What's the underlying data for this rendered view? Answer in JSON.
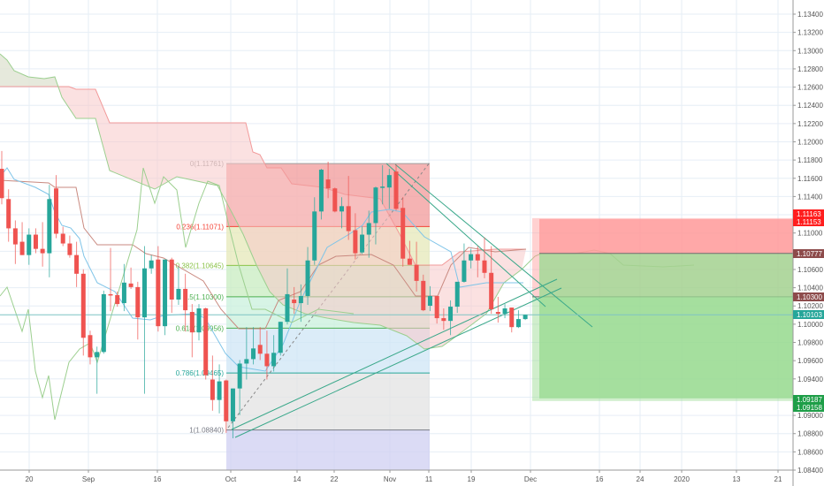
{
  "chart_data": {
    "type": "candlestick",
    "symbol_hidden": true,
    "ylim": [
      1.084,
      1.134
    ],
    "grid": true,
    "y_ticks": [
      "1.13400",
      "1.13200",
      "1.13000",
      "1.12800",
      "1.12600",
      "1.12400",
      "1.12200",
      "1.12000",
      "1.11800",
      "1.11600",
      "1.11400",
      "1.11000",
      "1.10600",
      "1.10400",
      "1.10200",
      "1.10000",
      "1.09800",
      "1.09600",
      "1.09400",
      "1.09000",
      "1.08800",
      "1.08600",
      "1.08400"
    ],
    "x_ticks": [
      "20",
      "Sep",
      "16",
      "Oct",
      "14",
      "22",
      "Nov",
      "11",
      "19",
      "Dec",
      "16",
      "24",
      "2020",
      "13",
      "21"
    ],
    "candles_ohlc": [
      [
        1.11704,
        1.11899,
        1.11314,
        1.11382
      ],
      [
        1.11372,
        1.11479,
        1.10904,
        1.11051
      ],
      [
        1.11051,
        1.11138,
        1.1066,
        1.10875
      ],
      [
        1.10904,
        1.11119,
        1.10758,
        1.10758
      ],
      [
        1.10758,
        1.11051,
        1.10651,
        1.10982
      ],
      [
        1.10982,
        1.11051,
        1.10778,
        1.10826
      ],
      [
        1.10826,
        1.11119,
        1.10631,
        1.10778
      ],
      [
        1.10778,
        1.11528,
        1.10514,
        1.11372
      ],
      [
        1.11489,
        1.11635,
        1.10943,
        1.10992
      ],
      [
        1.10992,
        1.1107,
        1.10856,
        1.10885
      ],
      [
        1.10885,
        1.10972,
        1.10729,
        1.10758
      ],
      [
        1.10758,
        1.10904,
        1.10407,
        1.10553
      ],
      [
        1.10553,
        1.10602,
        1.09656,
        1.09851
      ],
      [
        1.0988,
        1.09929,
        1.09559,
        1.09637
      ],
      [
        1.09637,
        1.09754,
        1.09237,
        1.09695
      ],
      [
        1.09695,
        1.10368,
        1.09676,
        1.10329
      ],
      [
        1.10329,
        1.10836,
        1.10143,
        1.10319
      ],
      [
        1.10319,
        1.10358,
        1.10192,
        1.10221
      ],
      [
        1.10231,
        1.1066,
        1.10143,
        1.10456
      ],
      [
        1.10446,
        1.10621,
        1.10387,
        1.10407
      ],
      [
        1.10407,
        1.10465,
        1.09832,
        1.10075
      ],
      [
        1.10075,
        1.10856,
        1.09237,
        1.10612
      ],
      [
        1.10612,
        1.10758,
        1.10553,
        1.10699
      ],
      [
        1.10709,
        1.10856,
        1.09919,
        1.09978
      ],
      [
        1.09978,
        1.10709,
        1.0988,
        1.10709
      ],
      [
        1.10709,
        1.10729,
        1.10124,
        1.1027
      ],
      [
        1.1027,
        1.10631,
        1.10212,
        1.10387
      ],
      [
        1.10387,
        1.10553,
        1.09919,
        1.10153
      ],
      [
        1.10134,
        1.10221,
        1.09637,
        1.0991
      ],
      [
        1.0991,
        1.10221,
        1.09822,
        1.10173
      ],
      [
        1.10173,
        1.10182,
        1.09393,
        1.09441
      ],
      [
        1.09393,
        1.09656,
        1.09051,
        1.09169
      ],
      [
        1.09169,
        1.09559,
        1.09022,
        1.09373
      ],
      [
        1.09383,
        1.09393,
        1.08808,
        1.08935
      ],
      [
        1.08935,
        1.09295,
        1.08749,
        1.09295
      ],
      [
        1.09295,
        1.09607,
        1.09003,
        1.09568
      ],
      [
        1.09568,
        1.09968,
        1.09393,
        1.09617
      ],
      [
        1.09617,
        1.09968,
        1.09559,
        1.09734
      ],
      [
        1.09773,
        1.09968,
        1.09607,
        1.09676
      ],
      [
        1.09676,
        1.09929,
        1.09393,
        1.09539
      ],
      [
        1.09539,
        1.0988,
        1.09481,
        1.09686
      ],
      [
        1.09686,
        1.10026,
        1.09656,
        1.10026
      ],
      [
        1.10026,
        1.10612,
        1.09997,
        1.10329
      ],
      [
        1.1027,
        1.10407,
        1.10114,
        1.10231
      ],
      [
        1.10231,
        1.10436,
        1.10026,
        1.10309
      ],
      [
        1.10309,
        1.10846,
        1.10212,
        1.10699
      ],
      [
        1.10699,
        1.11392,
        1.10651,
        1.11236
      ],
      [
        1.11236,
        1.11704,
        1.11148,
        1.11694
      ],
      [
        1.11587,
        1.11782,
        1.11382,
        1.11489
      ],
      [
        1.11489,
        1.11499,
        1.11226,
        1.11236
      ],
      [
        1.11236,
        1.11392,
        1.11051,
        1.11294
      ],
      [
        1.11294,
        1.11626,
        1.10924,
        1.11021
      ],
      [
        1.11031,
        1.11216,
        1.10709,
        1.10778
      ],
      [
        1.10787,
        1.1107,
        1.10768,
        1.10982
      ],
      [
        1.10982,
        1.11245,
        1.10729,
        1.11109
      ],
      [
        1.11109,
        1.11509,
        1.10875,
        1.11499
      ],
      [
        1.11499,
        1.11743,
        1.11314,
        1.11509
      ],
      [
        1.11499,
        1.11704,
        1.11265,
        1.11635
      ],
      [
        1.11674,
        1.11752,
        1.11245,
        1.11265
      ],
      [
        1.11275,
        1.11392,
        1.10631,
        1.10719
      ],
      [
        1.10719,
        1.10914,
        1.10651,
        1.10651
      ],
      [
        1.10651,
        1.10904,
        1.10358,
        1.10475
      ],
      [
        1.10475,
        1.10543,
        1.10143,
        1.10153
      ],
      [
        1.10202,
        1.10417,
        1.10143,
        1.10309
      ],
      [
        1.10309,
        1.10309,
        1.10007,
        1.10066
      ],
      [
        1.10066,
        1.10173,
        1.09939,
        1.10036
      ],
      [
        1.10036,
        1.10261,
        1.0988,
        1.10192
      ],
      [
        1.10192,
        1.10465,
        1.10124,
        1.10465
      ],
      [
        1.10465,
        1.10885,
        1.10456,
        1.10699
      ],
      [
        1.10699,
        1.10826,
        1.10612,
        1.10768
      ],
      [
        1.10768,
        1.10856,
        1.10514,
        1.10699
      ],
      [
        1.10699,
        1.10953,
        1.10504,
        1.10563
      ],
      [
        1.10563,
        1.10856,
        1.10114,
        1.10163
      ],
      [
        1.10134,
        1.103,
        1.10017,
        1.10114
      ],
      [
        1.10114,
        1.10221,
        1.10066,
        1.10173
      ],
      [
        1.10182,
        1.10182,
        1.0991,
        1.09968
      ],
      [
        1.09968,
        1.10153,
        1.09958,
        1.10056
      ],
      [
        1.10056,
        1.10104,
        1.10046,
        1.10103
      ]
    ],
    "last_price": "1.10103",
    "fibonacci": {
      "levels": [
        {
          "ratio": 0,
          "price": 1.11761,
          "label": "0(1.11761)",
          "color": "#9e9e9e"
        },
        {
          "ratio": 0.236,
          "price": 1.11071,
          "label": "0.236(1.11071)",
          "color": "#f44336"
        },
        {
          "ratio": 0.382,
          "price": 1.10645,
          "label": "0.382(1.10645)",
          "color": "#8bc34a"
        },
        {
          "ratio": 0.5,
          "price": 1.103,
          "label": "0.5(1.10300)",
          "color": "#4caf50"
        },
        {
          "ratio": 0.618,
          "price": 1.09956,
          "label": "0.618(1.09956)",
          "color": "#4caf50"
        },
        {
          "ratio": 0.786,
          "price": 1.09465,
          "label": "0.786(1.09465)",
          "color": "#26a69a"
        },
        {
          "ratio": 1,
          "price": 1.0884,
          "label": "1(1.08840)",
          "color": "#787b86"
        }
      ],
      "fills": [
        "#f29a9a",
        "#e5e8b8",
        "#c8ecc0",
        "#c9f0dc",
        "#cfe6f5",
        "#e3e3e3",
        "#cfcff2"
      ]
    },
    "positions": [
      {
        "stop": 1.11163,
        "entry": 1.103,
        "target": 1.09158
      },
      {
        "stop": 1.11153,
        "entry": 1.10777,
        "target": 1.09187
      }
    ],
    "price_tags": [
      {
        "text": "1.11163",
        "price": 1.11163,
        "color": "#ff1e1e"
      },
      {
        "text": "1.11153",
        "price": 1.11153,
        "color": "#ff1e1e"
      },
      {
        "text": "1.10777",
        "price": 1.10777,
        "color": "#8d4b4b"
      },
      {
        "text": "1.10300",
        "price": 1.103,
        "color": "#8d4b4b"
      },
      {
        "text": "1.10103",
        "price": 1.10103,
        "color": "#26a69a"
      },
      {
        "text": "1.09187",
        "price": 1.09187,
        "color": "#1e9e48"
      },
      {
        "text": "1.09158",
        "price": 1.09158,
        "color": "#1e9e48"
      }
    ],
    "colors": {
      "up": "#26a69a",
      "down": "#ef5350",
      "grid": "#e6eef6",
      "cloud_bear": "#f8c8c8",
      "cloud_bull": "#d8efd8",
      "tenkan": "#7fc4e8",
      "kijun": "#c98a80",
      "span_a": "#9ccf8f",
      "span_b": "#f29a9a",
      "chikou": "#9ccf8f",
      "stop_zone": "#ff9a9a",
      "target_zone": "#97d98f"
    }
  }
}
